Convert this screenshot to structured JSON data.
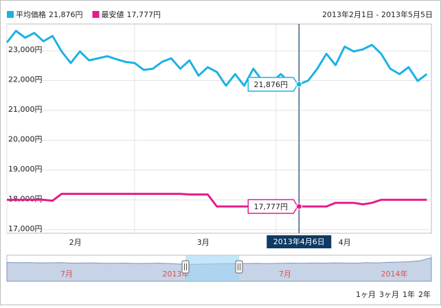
{
  "chart_data": {
    "type": "line",
    "date_range_label": "2013年2月1日 - 2013年5月5日",
    "x": [
      "2013-02-01",
      "2013-02-03",
      "2013-02-05",
      "2013-02-07",
      "2013-02-09",
      "2013-02-11",
      "2013-02-13",
      "2013-02-15",
      "2013-02-17",
      "2013-02-19",
      "2013-02-21",
      "2013-02-23",
      "2013-02-25",
      "2013-02-27",
      "2013-03-01",
      "2013-03-03",
      "2013-03-05",
      "2013-03-07",
      "2013-03-09",
      "2013-03-11",
      "2013-03-13",
      "2013-03-15",
      "2013-03-17",
      "2013-03-19",
      "2013-03-21",
      "2013-03-23",
      "2013-03-25",
      "2013-03-27",
      "2013-03-29",
      "2013-03-31",
      "2013-04-02",
      "2013-04-04",
      "2013-04-06",
      "2013-04-08",
      "2013-04-10",
      "2013-04-12",
      "2013-04-14",
      "2013-04-16",
      "2013-04-18",
      "2013-04-20",
      "2013-04-22",
      "2013-04-24",
      "2013-04-26",
      "2013-04-28",
      "2013-04-30",
      "2013-05-02",
      "2013-05-04"
    ],
    "xlim": [
      "2013-02-01",
      "2013-05-05"
    ],
    "xticks": [
      {
        "value": "2013-02-01",
        "label": "2月"
      },
      {
        "value": "2013-03-01",
        "label": "3月"
      },
      {
        "value": "2013-04-01",
        "label": "4月"
      }
    ],
    "ylim": [
      16880,
      23900
    ],
    "yticks": [
      {
        "value": 17000,
        "label": "17,000円"
      },
      {
        "value": 18000,
        "label": "18,000円"
      },
      {
        "value": 19000,
        "label": "19,000円"
      },
      {
        "value": 20000,
        "label": "20,000円"
      },
      {
        "value": 21000,
        "label": "21,000円"
      },
      {
        "value": 22000,
        "label": "22,000円"
      },
      {
        "value": 23000,
        "label": "23,000円"
      }
    ],
    "grid": true,
    "series": [
      {
        "name": "平均価格",
        "color": "#1bb1e6",
        "values": [
          23280,
          23670,
          23440,
          23600,
          23320,
          23500,
          22980,
          22590,
          22980,
          22680,
          22750,
          22820,
          22720,
          22630,
          22590,
          22360,
          22400,
          22630,
          22750,
          22400,
          22680,
          22170,
          22450,
          22290,
          21830,
          22220,
          21830,
          22400,
          21990,
          21940,
          22220,
          21940,
          21876,
          22000,
          22400,
          22900,
          22520,
          23140,
          22980,
          23050,
          23200,
          22900,
          22400,
          22220,
          22450,
          21990,
          22220
        ]
      },
      {
        "name": "最安値",
        "color": "#e8198b",
        "values": [
          18000,
          18000,
          18000,
          18000,
          18000,
          17970,
          18200,
          18200,
          18200,
          18200,
          18200,
          18200,
          18200,
          18200,
          18200,
          18200,
          18200,
          18200,
          18200,
          18200,
          18180,
          18180,
          18180,
          17777,
          17777,
          17777,
          17777,
          17777,
          17777,
          17777,
          17777,
          17777,
          17777,
          17777,
          17777,
          17777,
          17900,
          17900,
          17900,
          17850,
          17900,
          18000,
          18000,
          18000,
          18000,
          18000,
          18000
        ]
      }
    ],
    "cursor": {
      "date": "2013-04-06",
      "label": "2013年4月6日",
      "values": [
        21876,
        17777
      ],
      "value_labels": [
        "21,876円",
        "17,777円"
      ]
    },
    "navigator": {
      "labels": [
        "7月",
        "2013年",
        "7月",
        "2014年"
      ],
      "ylim": [
        15000,
        25500
      ],
      "values": [
        22600,
        22500,
        22550,
        22400,
        22450,
        22500,
        22300,
        22350,
        22400,
        22200,
        22250,
        22300,
        22150,
        22200,
        22300,
        22100,
        21900,
        21800,
        21900,
        22000,
        22100,
        22050,
        22150,
        22200,
        22100,
        22200,
        22300,
        22250,
        22350,
        22300,
        22400,
        22350,
        22300,
        22500,
        22400,
        22600,
        22700,
        22900,
        23300,
        24500
      ]
    },
    "range_buttons": [
      "1ヶ月",
      "3ヶ月",
      "1年",
      "2年"
    ]
  }
}
